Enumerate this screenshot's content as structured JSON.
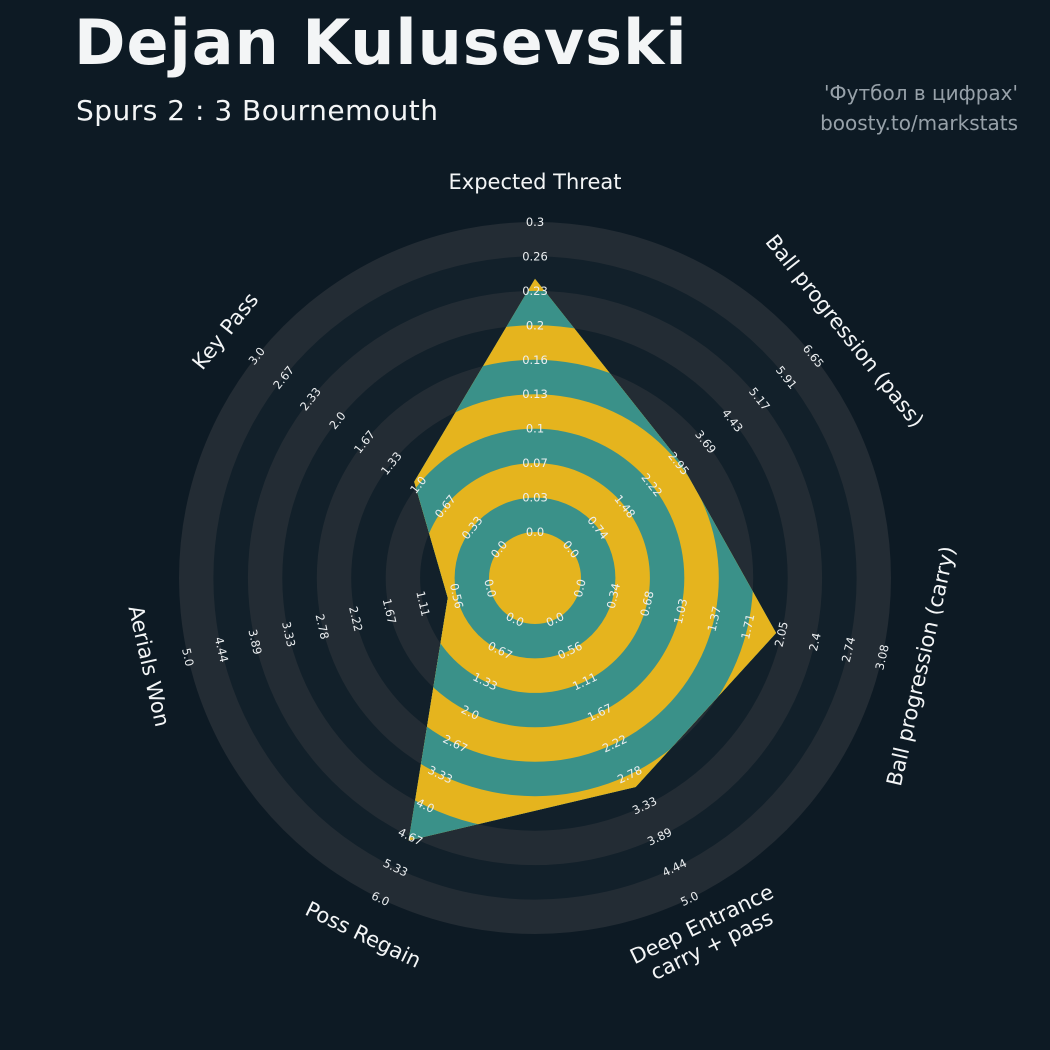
{
  "header": {
    "title": "Dejan Kulusevski",
    "subtitle": "Spurs 2 : 3 Bournemouth",
    "credit_line1": "'Футбол в цифрах'",
    "credit_line2": "boosty.to/markstats"
  },
  "colors": {
    "background": "#0d1a24",
    "ring_light": "#232c34",
    "ring_dark": "#12202a",
    "polygon_teal": "#3a9189",
    "ring_yellow": "#e5b41e",
    "text": "#f3f5f6",
    "tick_text": "#eceff1",
    "muted": "#97a1a9"
  },
  "chart_data": {
    "type": "radar",
    "title": "Dejan Kulusevski",
    "subtitle": "Spurs 2 : 3 Bournemouth",
    "rings": 9,
    "legend_position": "none",
    "axes": [
      {
        "label": "Expected Threat",
        "min": 0,
        "max": 0.3,
        "value": 0.245,
        "ticks": [
          "0.0",
          "0.03",
          "0.07",
          "0.1",
          "0.13",
          "0.16",
          "0.2",
          "0.23",
          "0.26",
          "0.3"
        ]
      },
      {
        "label": "Ball progression (pass)",
        "min": 0,
        "max": 6.65,
        "value": 3.0,
        "ticks": [
          "0.0",
          "0.74",
          "1.48",
          "2.22",
          "2.95",
          "3.69",
          "4.43",
          "5.17",
          "5.91",
          "6.65"
        ]
      },
      {
        "label": "Ball progression (carry)",
        "min": 0,
        "max": 3.08,
        "value": 2.0,
        "ticks": [
          "0.0",
          "0.34",
          "0.68",
          "1.03",
          "1.37",
          "1.71",
          "2.05",
          "2.4",
          "2.74",
          "3.08"
        ]
      },
      {
        "label": "Deep Entrance\ncarry + pass",
        "min": 0,
        "max": 5.0,
        "value": 3.0,
        "ticks": [
          "0.0",
          "0.56",
          "1.11",
          "1.67",
          "2.22",
          "2.78",
          "3.33",
          "3.89",
          "4.44",
          "5.0"
        ]
      },
      {
        "label": "Poss Regain",
        "min": 0,
        "max": 6.0,
        "value": 4.75,
        "ticks": [
          "0.0",
          "0.67",
          "1.33",
          "2.0",
          "2.67",
          "3.33",
          "4.0",
          "4.67",
          "5.33",
          "6.0"
        ]
      },
      {
        "label": "Aerials Won",
        "min": 0,
        "max": 5.0,
        "value": 0.7,
        "ticks": [
          "0.0",
          "0.56",
          "1.11",
          "1.67",
          "2.22",
          "2.78",
          "3.33",
          "3.89",
          "4.44",
          "5.0"
        ]
      },
      {
        "label": "Key Pass",
        "min": 0,
        "max": 3.0,
        "value": 1.05,
        "ticks": [
          "0.0",
          "0.33",
          "0.67",
          "1.0",
          "1.33",
          "1.67",
          "2.0",
          "2.33",
          "2.67",
          "3.0"
        ]
      }
    ]
  }
}
